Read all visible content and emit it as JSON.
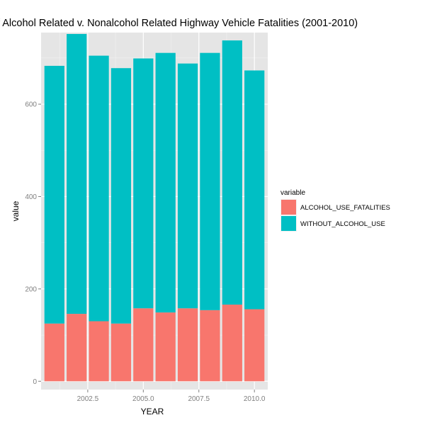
{
  "chart_data": {
    "type": "bar",
    "stacked": true,
    "title": "f Alcohol Related v. Nonalcohol Related Highway Vehicle Fatalities (2001-2010)",
    "xlabel": "YEAR",
    "ylabel": "value",
    "x": [
      2001,
      2002,
      2003,
      2004,
      2005,
      2006,
      2007,
      2008,
      2009,
      2010
    ],
    "xlim": [
      2000.4,
      2010.6
    ],
    "ylim": [
      -18,
      755
    ],
    "xticks": [
      "2002.5",
      "2005.0",
      "2007.5",
      "2010.0"
    ],
    "yticks": [
      "0",
      "200",
      "400",
      "600"
    ],
    "grid": true,
    "legend_title": "variable",
    "legend_position": "right",
    "series": [
      {
        "name": "ALCOHOL_USE_FATALITIES",
        "color": "#f8766d",
        "values": [
          125,
          146,
          130,
          125,
          158,
          149,
          158,
          154,
          166,
          156
        ]
      },
      {
        "name": "WITHOUT_ALCOHOL_USE",
        "color": "#00bfc4",
        "values": [
          558,
          606,
          575,
          553,
          541,
          562,
          530,
          557,
          572,
          517
        ]
      }
    ]
  }
}
